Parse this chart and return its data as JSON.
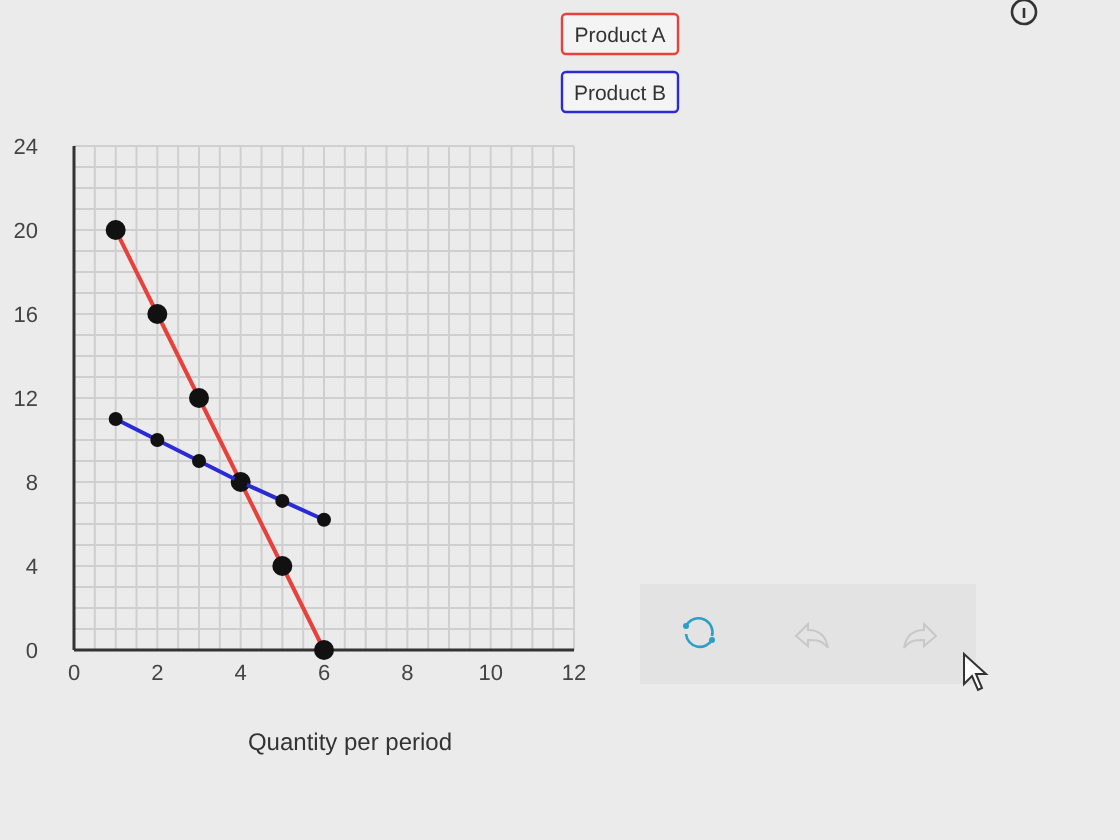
{
  "chart_data": {
    "type": "line",
    "xlabel": "Quantity per period",
    "x": [
      1,
      2,
      3,
      4,
      5,
      6
    ],
    "series": [
      {
        "name": "Product A",
        "color": "#e8413c",
        "values": [
          20,
          16,
          12,
          8,
          4,
          0
        ]
      },
      {
        "name": "Product B",
        "color": "#2b2bd6",
        "values": [
          11,
          10,
          9,
          8,
          7.1,
          6.2
        ]
      }
    ],
    "xlim": [
      0,
      12
    ],
    "ylim": [
      0,
      24
    ],
    "xticks": [
      0,
      {
        "value": 0.5,
        "label": null
      },
      {
        "value": 1,
        "label": null
      },
      {
        "value": 1.5,
        "label": null
      },
      2,
      {
        "value": 2.5,
        "label": null
      },
      {
        "value": 3,
        "label": null
      },
      {
        "value": 3.5,
        "label": null
      },
      4,
      {
        "value": 4.5,
        "label": null
      },
      {
        "value": 5,
        "label": null
      },
      {
        "value": 5.5,
        "label": null
      },
      6,
      {
        "value": 6.5,
        "label": null
      },
      {
        "value": 7,
        "label": null
      },
      {
        "value": 7.5,
        "label": null
      },
      8,
      {
        "value": 8.5,
        "label": null
      },
      {
        "value": 9,
        "label": null
      },
      {
        "value": 9.5,
        "label": null
      },
      10,
      {
        "value": 10.5,
        "label": null
      },
      {
        "value": 11,
        "label": null
      },
      {
        "value": 11.5,
        "label": null
      },
      12
    ],
    "yticks": [
      0,
      {
        "value": 1,
        "label": null
      },
      {
        "value": 2,
        "label": null
      },
      {
        "value": 3,
        "label": null
      },
      4,
      {
        "value": 5,
        "label": null
      },
      {
        "value": 6,
        "label": null
      },
      {
        "value": 7,
        "label": null
      },
      8,
      {
        "value": 9,
        "label": null
      },
      {
        "value": 10,
        "label": null
      },
      {
        "value": 11,
        "label": null
      },
      12,
      {
        "value": 13,
        "label": null
      },
      {
        "value": 14,
        "label": null
      },
      {
        "value": 15,
        "label": null
      },
      16,
      {
        "value": 17,
        "label": null
      },
      {
        "value": 18,
        "label": null
      },
      {
        "value": 19,
        "label": null
      },
      20,
      {
        "value": 21,
        "label": null
      },
      {
        "value": 22,
        "label": null
      },
      {
        "value": 23,
        "label": null
      },
      24
    ],
    "grid": true,
    "legend": "top right",
    "marker": "circle",
    "line_style": "solid"
  }
}
